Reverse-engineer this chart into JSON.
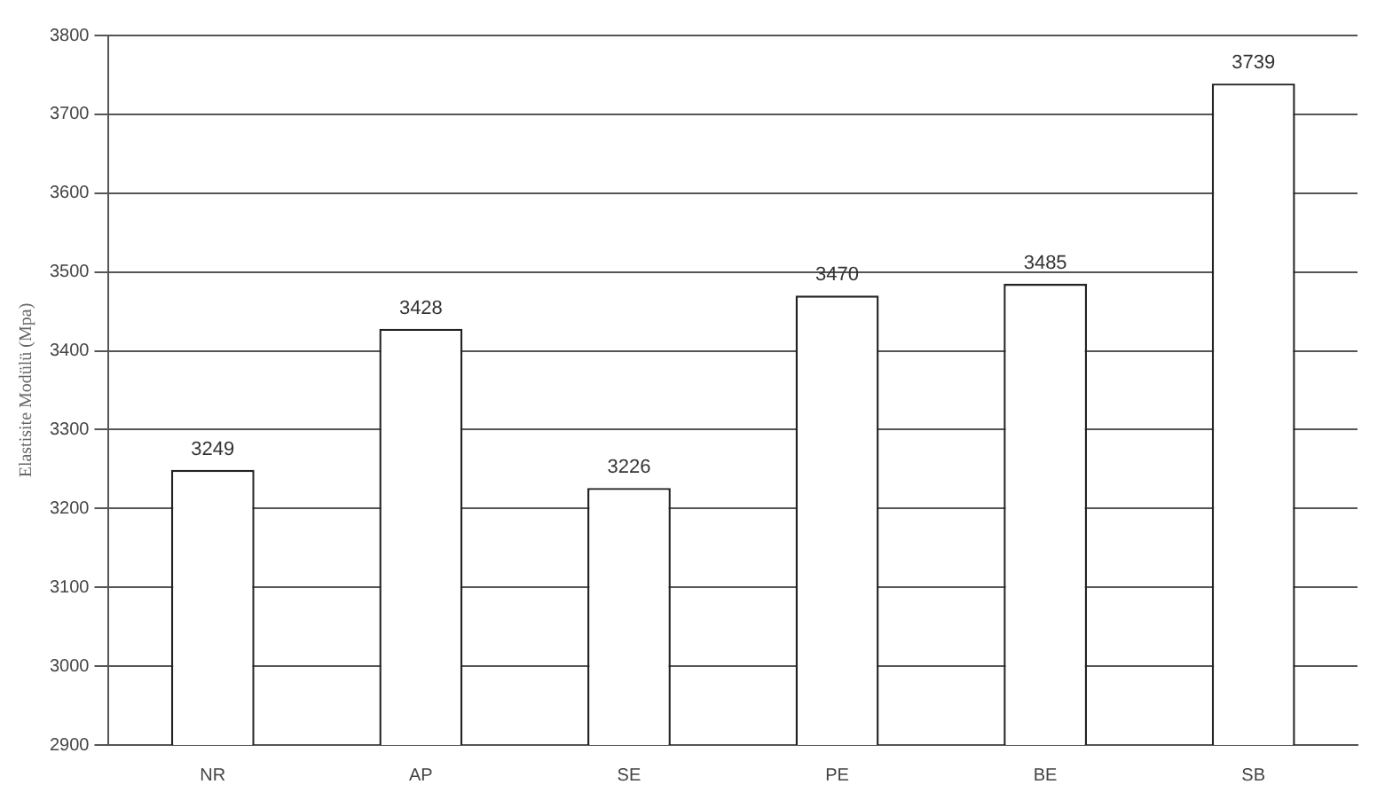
{
  "chart_data": {
    "type": "bar",
    "ylabel": "Elastisite Modülü (Mpa)",
    "categories": [
      "NR",
      "AP",
      "SE",
      "PE",
      "BE",
      "SB"
    ],
    "values": [
      3249,
      3428,
      3226,
      3470,
      3485,
      3739
    ],
    "color": "#ffffff",
    "ylim": [
      2900,
      3800
    ],
    "yticks": [
      2900,
      3000,
      3100,
      3200,
      3300,
      3400,
      3500,
      3600,
      3700,
      3800
    ],
    "grid": "y",
    "legend": false,
    "data_labels": true
  }
}
